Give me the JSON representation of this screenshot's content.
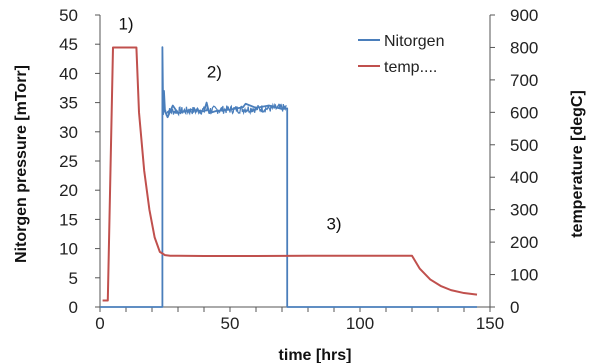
{
  "chart_data": {
    "type": "line",
    "xlabel": "time [hrs]",
    "ylabel_left": "Nitorgen pressure [mTorr]",
    "ylabel_right": "temperature [degC]",
    "xlim": [
      0,
      150
    ],
    "ylim_left": [
      0,
      50
    ],
    "ylim_right": [
      0,
      900
    ],
    "x_ticks": [
      0,
      50,
      100,
      150
    ],
    "y_ticks_left": [
      0,
      5,
      10,
      15,
      20,
      25,
      30,
      35,
      40,
      45,
      50
    ],
    "y_ticks_right": [
      0,
      100,
      200,
      300,
      400,
      500,
      600,
      700,
      800,
      900
    ],
    "grid": false,
    "legend_position": "top-right",
    "series": [
      {
        "name": "Nitorgen",
        "axis": "left",
        "color": "#4a7ebb",
        "x": [
          0,
          24,
          24,
          24.3,
          24.6,
          25,
          26,
          28,
          30,
          35,
          40,
          41,
          42,
          45,
          50,
          55,
          56,
          60,
          65,
          70,
          72,
          72,
          145
        ],
        "y": [
          0,
          0,
          44.5,
          33,
          37,
          33.5,
          32.5,
          34.5,
          33.2,
          33.8,
          33.5,
          35,
          33.2,
          33.6,
          33.8,
          34.2,
          34.8,
          34.1,
          34.5,
          33.9,
          34,
          0,
          0
        ]
      },
      {
        "name": "temp....",
        "axis": "right",
        "color": "#c0504d",
        "x": [
          1,
          3,
          5,
          6,
          10,
          14,
          15,
          17,
          19,
          21,
          23,
          25,
          27,
          30,
          40,
          60,
          80,
          100,
          110,
          120,
          123,
          127,
          131,
          135,
          140,
          145
        ],
        "y": [
          20,
          20,
          800,
          800,
          800,
          800,
          600,
          420,
          300,
          215,
          170,
          160,
          158,
          158,
          157,
          157,
          158,
          158,
          158,
          158,
          118,
          85,
          65,
          52,
          43,
          38
        ]
      }
    ],
    "annotations": [
      {
        "text": "1)",
        "x": 10,
        "y_left": 47.5
      },
      {
        "text": "2)",
        "x": 44,
        "y_left": 39.3
      },
      {
        "text": "3)",
        "x": 90,
        "y_left": 13.3
      }
    ]
  }
}
